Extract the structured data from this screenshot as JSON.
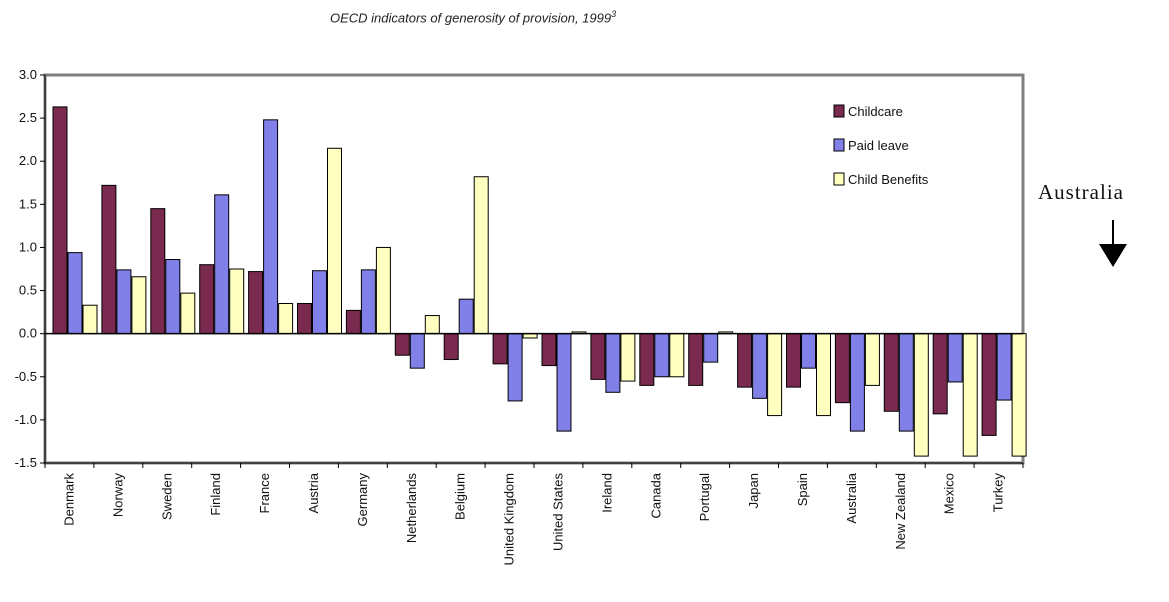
{
  "chart_data": {
    "type": "bar",
    "title": "OECD indicators of generosity of provision, 1999",
    "title_superscript": "3",
    "categories": [
      "Denmark",
      "Norway",
      "Sweden",
      "Finland",
      "France",
      "Austria",
      "Germany",
      "Netherlands",
      "Belgium",
      "United Kingdom",
      "United States",
      "Ireland",
      "Canada",
      "Portugal",
      "Japan",
      "Spain",
      "Australia",
      "New Zealand",
      "Mexico",
      "Turkey"
    ],
    "series": [
      {
        "name": "Childcare",
        "color": "#7a2a4f",
        "values": [
          2.63,
          1.72,
          1.45,
          0.8,
          0.72,
          0.35,
          0.27,
          -0.25,
          -0.3,
          -0.35,
          -0.37,
          -0.53,
          -0.6,
          -0.6,
          -0.62,
          -0.62,
          -0.8,
          -0.9,
          -0.93,
          -1.18
        ]
      },
      {
        "name": "Paid leave",
        "color": "#8080e8",
        "values": [
          0.94,
          0.74,
          0.86,
          1.61,
          2.48,
          0.73,
          0.74,
          -0.4,
          0.4,
          -0.78,
          -1.13,
          -0.68,
          -0.5,
          -0.33,
          -0.75,
          -0.4,
          -1.13,
          -1.13,
          -0.56,
          -0.77
        ]
      },
      {
        "name": "Child Benefits",
        "color": "#ffffc0",
        "values": [
          0.33,
          0.66,
          0.47,
          0.75,
          0.35,
          2.15,
          1.0,
          0.21,
          1.82,
          -0.05,
          0.02,
          -0.55,
          -0.5,
          0.02,
          -0.95,
          -0.95,
          -0.6,
          -1.42,
          -1.42,
          -1.42
        ]
      }
    ],
    "ylim": [
      -1.5,
      3.0
    ],
    "yticks": [
      "3.0",
      "2.5",
      "2.0",
      "1.5",
      "1.0",
      "0.5",
      "0.0",
      "-0.5",
      "-1.0",
      "-1.5"
    ],
    "ytick_values": [
      3.0,
      2.5,
      2.0,
      1.5,
      1.0,
      0.5,
      0.0,
      -0.5,
      -1.0,
      -1.5
    ],
    "legend_position": "top-right",
    "grid": false
  },
  "annotation": {
    "text": "Australia",
    "icon": "arrow-down-icon"
  }
}
